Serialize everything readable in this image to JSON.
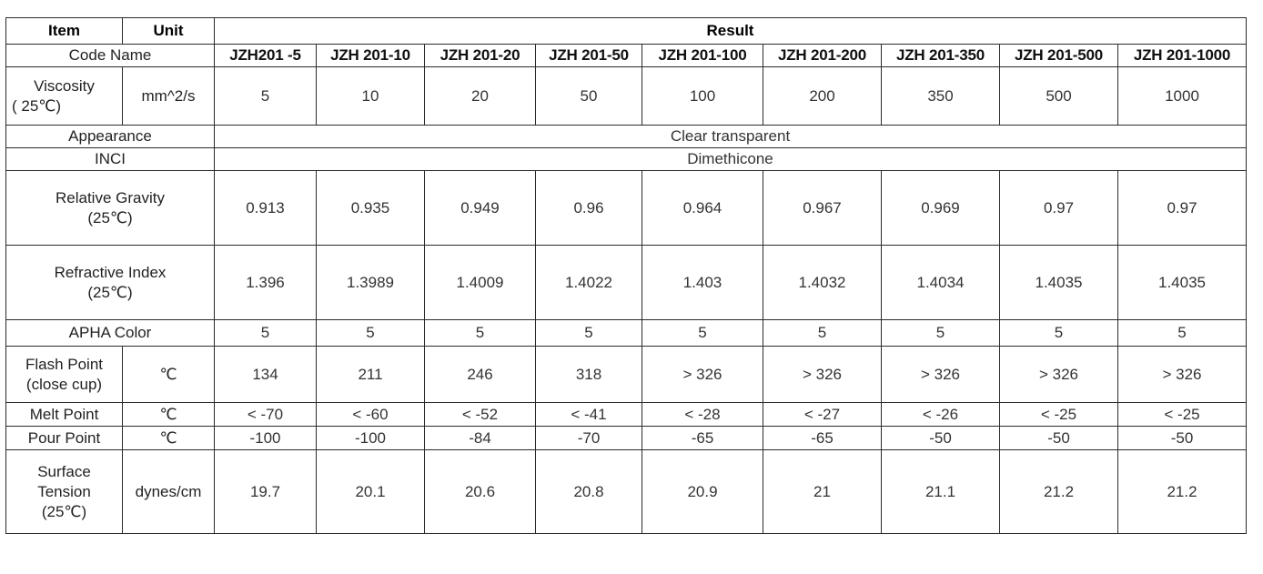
{
  "header": {
    "item": "Item",
    "unit": "Unit",
    "result": "Result"
  },
  "code_name": {
    "label": "Code Name",
    "codes": [
      "JZH201 -5",
      "JZH 201-10",
      "JZH 201-20",
      "JZH 201-50",
      "JZH 201-100",
      "JZH 201-200",
      "JZH 201-350",
      "JZH 201-500",
      "JZH 201-1000"
    ]
  },
  "viscosity": {
    "label_line1": "Viscosity",
    "label_line2": "( 25℃)",
    "unit": "mm^2/s",
    "values": [
      "5",
      "10",
      "20",
      "50",
      "100",
      "200",
      "350",
      "500",
      "1000"
    ]
  },
  "appearance": {
    "label": "Appearance",
    "value": "Clear transparent"
  },
  "inci": {
    "label": "INCI",
    "value": "Dimethicone"
  },
  "relative_gravity": {
    "label_line1": "Relative Gravity",
    "label_line2": "(25℃)",
    "values": [
      "0.913",
      "0.935",
      "0.949",
      "0.96",
      "0.964",
      "0.967",
      "0.969",
      "0.97",
      "0.97"
    ]
  },
  "refractive_index": {
    "label_line1": "Refractive Index",
    "label_line2": "(25℃)",
    "values": [
      "1.396",
      "1.3989",
      "1.4009",
      "1.4022",
      "1.403",
      "1.4032",
      "1.4034",
      "1.4035",
      "1.4035"
    ]
  },
  "apha_color": {
    "label": "APHA Color",
    "values": [
      "5",
      "5",
      "5",
      "5",
      "5",
      "5",
      "5",
      "5",
      "5"
    ]
  },
  "flash_point": {
    "label_line1": "Flash Point",
    "label_line2": "(close cup)",
    "unit": "℃",
    "values": [
      "134",
      "211",
      "246",
      "318",
      "> 326",
      "> 326",
      "> 326",
      "> 326",
      "> 326"
    ]
  },
  "melt_point": {
    "label": "Melt Point",
    "unit": "℃",
    "values": [
      "< -70",
      "< -60",
      "< -52",
      "< -41",
      "< -28",
      "< -27",
      "< -26",
      "< -25",
      "< -25"
    ]
  },
  "pour_point": {
    "label": "Pour Point",
    "unit": "℃",
    "values": [
      "-100",
      "-100",
      "-84",
      "-70",
      "-65",
      "-65",
      "-50",
      "-50",
      "-50"
    ]
  },
  "surface_tension": {
    "label_line1": "Surface",
    "label_line2": "Tension",
    "label_line3": "(25℃)",
    "unit": "dynes/cm",
    "values": [
      "19.7",
      "20.1",
      "20.6",
      "20.8",
      "20.9",
      "21",
      "21.1",
      "21.2",
      "21.2"
    ]
  }
}
